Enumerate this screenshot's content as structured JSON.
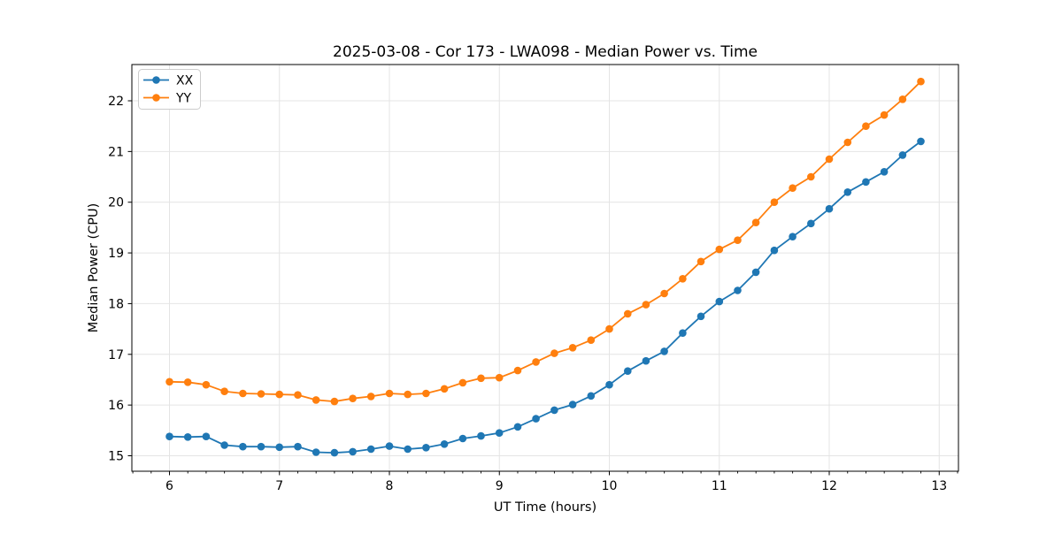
{
  "figure": {
    "background": "#ffffff",
    "spine_color": "#000000",
    "grid_color": "#e4e4e4"
  },
  "chart_data": {
    "type": "line",
    "title": "2025-03-08 - Cor 173 - LWA098 - Median Power vs. Time",
    "xlabel": "UT Time (hours)",
    "ylabel": "Median Power (CPU)",
    "grid": true,
    "legend_position": "upper-left",
    "xlim": [
      5.658,
      13.175
    ],
    "ylim": [
      14.695,
      22.715
    ],
    "xticks": [
      6,
      7,
      8,
      9,
      10,
      11,
      12,
      13
    ],
    "yticks": [
      15,
      16,
      17,
      18,
      19,
      20,
      21,
      22
    ],
    "x_minor_tick_step": 0.16667,
    "x": [
      6.0,
      6.167,
      6.333,
      6.5,
      6.667,
      6.833,
      7.0,
      7.167,
      7.333,
      7.5,
      7.667,
      7.833,
      8.0,
      8.167,
      8.333,
      8.5,
      8.667,
      8.833,
      9.0,
      9.167,
      9.333,
      9.5,
      9.667,
      9.833,
      10.0,
      10.167,
      10.333,
      10.5,
      10.667,
      10.833,
      11.0,
      11.167,
      11.333,
      11.5,
      11.667,
      11.833,
      12.0,
      12.167,
      12.333,
      12.5,
      12.667,
      12.833
    ],
    "series": [
      {
        "name": "XX",
        "color": "#1f77b4",
        "marker": "circle",
        "values": [
          15.38,
          15.37,
          15.38,
          15.21,
          15.18,
          15.18,
          15.17,
          15.18,
          15.07,
          15.06,
          15.08,
          15.13,
          15.19,
          15.13,
          15.16,
          15.23,
          15.34,
          15.39,
          15.45,
          15.57,
          15.73,
          15.9,
          16.01,
          16.18,
          16.4,
          16.67,
          16.87,
          17.06,
          17.42,
          17.75,
          18.04,
          18.26,
          18.62,
          19.05,
          19.32,
          19.58,
          19.87,
          20.2,
          20.4,
          20.6,
          20.93,
          21.2
        ]
      },
      {
        "name": "YY",
        "color": "#ff7f0e",
        "marker": "circle",
        "values": [
          16.46,
          16.45,
          16.4,
          16.27,
          16.23,
          16.22,
          16.21,
          16.2,
          16.1,
          16.07,
          16.13,
          16.17,
          16.23,
          16.21,
          16.23,
          16.32,
          16.44,
          16.53,
          16.54,
          16.68,
          16.85,
          17.02,
          17.13,
          17.28,
          17.5,
          17.8,
          17.98,
          18.2,
          18.49,
          18.83,
          19.07,
          19.25,
          19.6,
          20.0,
          20.28,
          20.5,
          20.85,
          21.18,
          21.5,
          21.72,
          22.03,
          22.38
        ]
      }
    ]
  }
}
